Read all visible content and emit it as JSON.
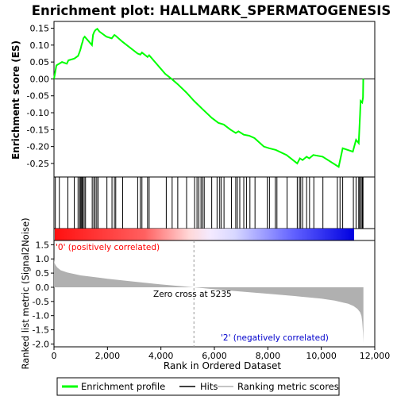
{
  "chart_data": [
    {
      "type": "line",
      "panel": "enrichment",
      "title": "Enrichment plot: HALLMARK_SPERMATOGENESIS",
      "ylabel": "Enrichment score (ES)",
      "xlim": [
        0,
        12000
      ],
      "ylim": [
        -0.29,
        0.17
      ],
      "yticks": [
        0.15,
        0.1,
        0.05,
        0.0,
        -0.05,
        -0.1,
        -0.15,
        -0.2,
        -0.25
      ],
      "ytick_labels": [
        "0.15",
        "0.10",
        "0.05",
        "0.00",
        "-0.05",
        "-0.10",
        "-0.15",
        "-0.20",
        "-0.25"
      ],
      "grid": false,
      "color": "#00ff00",
      "series": [
        {
          "name": "Enrichment profile",
          "x": [
            0,
            90,
            300,
            480,
            540,
            760,
            900,
            960,
            1000,
            1030,
            1070,
            1100,
            1150,
            1420,
            1460,
            1510,
            1560,
            1620,
            1700,
            1960,
            2160,
            2260,
            2300,
            2560,
            3130,
            3230,
            3290,
            3500,
            3560,
            4160,
            4400,
            4620,
            4950,
            5240,
            5500,
            5700,
            5900,
            6150,
            6350,
            6600,
            6800,
            6900,
            7100,
            7300,
            7500,
            7850,
            8050,
            8300,
            8700,
            9100,
            9200,
            9300,
            9450,
            9550,
            9700,
            10050,
            10650,
            10800,
            11180,
            11300,
            11400,
            11450,
            11470,
            11530,
            11560,
            11570
          ],
          "y": [
            0.0,
            0.04,
            0.05,
            0.045,
            0.055,
            0.06,
            0.068,
            0.08,
            0.09,
            0.1,
            0.11,
            0.12,
            0.125,
            0.1,
            0.13,
            0.14,
            0.145,
            0.148,
            0.14,
            0.125,
            0.12,
            0.13,
            0.128,
            0.11,
            0.075,
            0.072,
            0.078,
            0.065,
            0.07,
            0.015,
            0.0,
            -0.015,
            -0.04,
            -0.065,
            -0.085,
            -0.1,
            -0.115,
            -0.13,
            -0.135,
            -0.15,
            -0.16,
            -0.155,
            -0.165,
            -0.168,
            -0.175,
            -0.2,
            -0.205,
            -0.21,
            -0.225,
            -0.25,
            -0.235,
            -0.24,
            -0.23,
            -0.235,
            -0.225,
            -0.23,
            -0.26,
            -0.205,
            -0.215,
            -0.18,
            -0.19,
            -0.105,
            -0.065,
            -0.07,
            -0.055,
            0.0
          ]
        }
      ]
    },
    {
      "type": "scatter",
      "panel": "hits",
      "description_free": true,
      "x": [
        50,
        200,
        520,
        760,
        900,
        960,
        990,
        1030,
        1060,
        1080,
        1130,
        1180,
        1430,
        1490,
        1540,
        1600,
        1650,
        1980,
        2170,
        2260,
        2310,
        2570,
        3130,
        3230,
        3290,
        3500,
        3560,
        4200,
        4420,
        4630,
        4960,
        5260,
        5350,
        5420,
        5500,
        5560,
        5620,
        5900,
        6100,
        6200,
        6260,
        6360,
        6640,
        6800,
        6860,
        6950,
        7100,
        7200,
        7330,
        7520,
        7980,
        8060,
        8280,
        8340,
        8720,
        9100,
        9180,
        9230,
        9300,
        9450,
        9560,
        9720,
        10060,
        10600,
        10700,
        10800,
        11200,
        11300,
        11400,
        11440,
        11460,
        11520,
        11540,
        11560
      ]
    },
    {
      "type": "area",
      "panel": "ranked_metric",
      "ylabel": "Ranked list metric (Signal2Noise)",
      "xlabel": "Rank in Ordered Dataset",
      "xlim": [
        0,
        12000
      ],
      "ylim": [
        -2.1,
        1.65
      ],
      "xticks": [
        0,
        2000,
        4000,
        6000,
        8000,
        10000,
        12000
      ],
      "xtick_labels": [
        "0",
        "2,000",
        "4,000",
        "6,000",
        "8,000",
        "10,000",
        "12,000"
      ],
      "yticks": [
        1.5,
        1.0,
        0.5,
        0.0,
        -0.5,
        -1.0,
        -1.5,
        -2.0
      ],
      "ytick_labels": [
        "1.5",
        "1.0",
        "0.5",
        "0.0",
        "-0.5",
        "-1.0",
        "-1.5",
        "-2.0"
      ],
      "color": "#b0b0b0",
      "x": [
        0,
        20,
        60,
        120,
        250,
        500,
        1000,
        2000,
        3000,
        4000,
        5235,
        6000,
        7000,
        8000,
        9000,
        10000,
        10500,
        11000,
        11200,
        11350,
        11450,
        11500,
        11530,
        11560,
        11575
      ],
      "y": [
        1.0,
        0.85,
        0.78,
        0.7,
        0.6,
        0.52,
        0.42,
        0.3,
        0.2,
        0.1,
        0.0,
        -0.07,
        -0.15,
        -0.23,
        -0.31,
        -0.4,
        -0.47,
        -0.58,
        -0.66,
        -0.76,
        -0.88,
        -1.0,
        -1.2,
        -1.6,
        -1.95
      ],
      "annotations": {
        "positive": "'0' (positively correlated)",
        "negative": "'2' (negatively correlated)",
        "zero_cross": "Zero cross at 5235"
      },
      "zero_cross_rank": 5235
    }
  ],
  "legend": {
    "items": [
      {
        "label": "Enrichment profile",
        "color": "#00ff00"
      },
      {
        "label": "Hits",
        "color": "#000000"
      },
      {
        "label": "Ranking metric scores",
        "color": "#b0b0b0"
      }
    ]
  },
  "colors": {
    "profile": "#00ff00",
    "positive_text": "#ff0000",
    "negative_text": "#0000cc",
    "bar_red": "#ff0000",
    "bar_blue": "#0000ff"
  }
}
